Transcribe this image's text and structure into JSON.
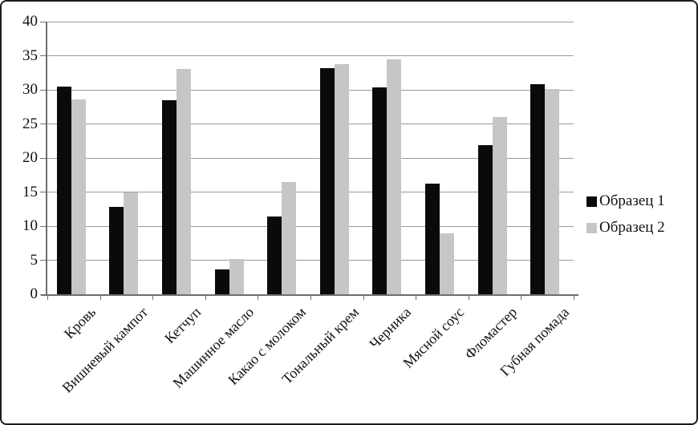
{
  "chart_data": {
    "type": "bar",
    "title": "",
    "xlabel": "",
    "ylabel": "",
    "ylim": [
      0,
      40
    ],
    "ytick_step": 5,
    "y_ticks": [
      "0",
      "5",
      "10",
      "15",
      "20",
      "25",
      "30",
      "35",
      "40"
    ],
    "grid": true,
    "legend_position": "right",
    "categories": [
      "Кровь",
      "Вишневый кампот",
      "Кетчуп",
      "Машинное масло",
      "Какао с молоком",
      "Тональный крем",
      "Черника",
      "Мясной соус",
      "Фломастер",
      "Губная помада"
    ],
    "series": [
      {
        "name": "Образец 1",
        "color": "#0a0a0a",
        "values": [
          30.5,
          12.8,
          28.5,
          3.6,
          11.4,
          33.2,
          30.3,
          16.2,
          21.9,
          30.8
        ]
      },
      {
        "name": "Образец 2",
        "color": "#c6c6c6",
        "values": [
          28.6,
          14.9,
          33.1,
          5.2,
          16.5,
          33.8,
          34.5,
          9.0,
          26.0,
          30.1
        ]
      }
    ],
    "colors": {
      "gridline": "#9b9b9b",
      "axis": "#6e6e6e",
      "text": "#111111",
      "background": "#ffffff",
      "border": "#1c1c1c"
    }
  }
}
